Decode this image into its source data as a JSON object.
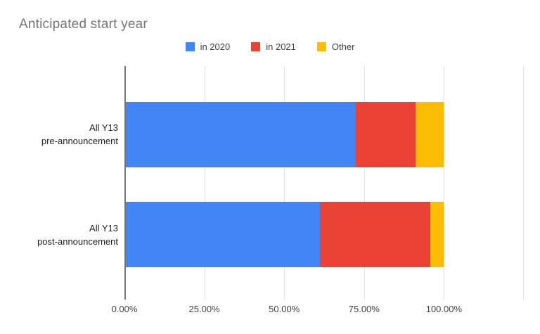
{
  "chart_data": {
    "type": "bar",
    "orientation": "horizontal",
    "stacked": true,
    "title": "Anticipated start year",
    "categories": [
      "All Y13\npre-announcement",
      "All Y13\npost-announcement"
    ],
    "series": [
      {
        "name": "in 2020",
        "color": "#4285F4",
        "values": [
          72.3,
          61.2
        ]
      },
      {
        "name": "in 2021",
        "color": "#EA4335",
        "values": [
          18.9,
          34.6
        ]
      },
      {
        "name": "Other",
        "color": "#FBBC04",
        "values": [
          8.8,
          4.2
        ]
      }
    ],
    "x_axis": {
      "unit": "percent",
      "min": 0,
      "max": 125,
      "gridline_step": 25,
      "tick_labels": [
        "0.00%",
        "25.00%",
        "50.00%",
        "75.00%",
        "100.00%"
      ]
    },
    "legend_position": "top",
    "grid": true,
    "colors": {
      "title_text": "#757575",
      "axis_line": "#757575",
      "gridline": "#e0e0e0",
      "label_text": "#424242"
    }
  }
}
